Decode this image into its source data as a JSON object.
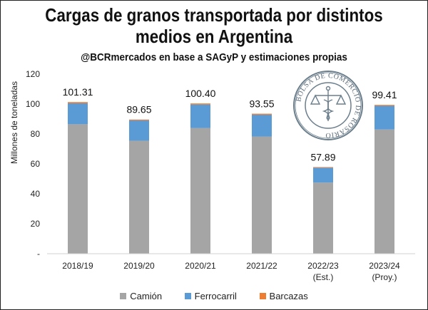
{
  "chart_data": {
    "type": "bar",
    "stacked": true,
    "title": "Cargas de granos transportada por distintos medios en Argentina",
    "subtitle": "@BCRmercados en base a SAGyP y estimaciones propias",
    "ylabel": "Millones de toneladas",
    "ylim": [
      0,
      120
    ],
    "yticks": [
      "-",
      "20",
      "40",
      "60",
      "80",
      "100",
      "120"
    ],
    "grid": false,
    "legend_position": "bottom",
    "categories": [
      "2018/19",
      "2019/20",
      "2020/21",
      "2021/22",
      "2022/23",
      "2023/24"
    ],
    "category_notes": [
      "",
      "",
      "",
      "",
      "(Est.)",
      "(Proy.)"
    ],
    "totals": [
      "101.31",
      "89.65",
      "100.40",
      "93.55",
      "57.89",
      "99.41"
    ],
    "series": [
      {
        "name": "Camión",
        "color": "#a5a5a5",
        "values": [
          86.5,
          75.5,
          84.0,
          78.3,
          47.5,
          83.0
        ]
      },
      {
        "name": "Ferrocarril",
        "color": "#5b9bd5",
        "values": [
          14.0,
          13.6,
          15.7,
          14.6,
          10.0,
          15.8
        ]
      },
      {
        "name": "Barcazas",
        "color": "#ed7d31",
        "values": [
          0.81,
          0.55,
          0.7,
          0.65,
          0.39,
          0.61
        ]
      }
    ],
    "watermark": {
      "type": "seal",
      "text": "BOLSA DE COMERCIO DE ROSARIO",
      "icon": "caduceus-icon"
    }
  }
}
